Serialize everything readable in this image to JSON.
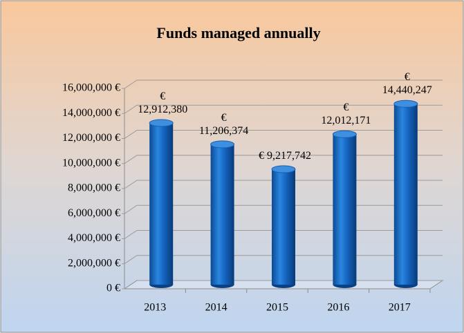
{
  "chart_data": {
    "type": "bar",
    "title": "Funds managed annually",
    "categories": [
      "2013",
      "2014",
      "2015",
      "2016",
      "2017"
    ],
    "values": [
      12912380,
      11206374,
      9217742,
      12012171,
      14440247
    ],
    "value_labels": [
      "€ 12,912,380",
      "€ 11,206,374",
      "€ 9,217,742",
      "€ 12,012,171",
      "€ 14,440,247"
    ],
    "color": "#1f6fc5",
    "ylim": [
      0,
      16000000
    ],
    "yticks": [
      {
        "value": 0,
        "label": "0 €"
      },
      {
        "value": 2000000,
        "label": "2,000,000 €"
      },
      {
        "value": 4000000,
        "label": "4,000,000 €"
      },
      {
        "value": 6000000,
        "label": "6,000,000 €"
      },
      {
        "value": 8000000,
        "label": "8,000,000 €"
      },
      {
        "value": 10000000,
        "label": "10,000,000 €"
      },
      {
        "value": 12000000,
        "label": "12,000,000 €"
      },
      {
        "value": 14000000,
        "label": "14,000,000 €"
      },
      {
        "value": 16000000,
        "label": "16,000,000 €"
      }
    ],
    "grid": true
  }
}
